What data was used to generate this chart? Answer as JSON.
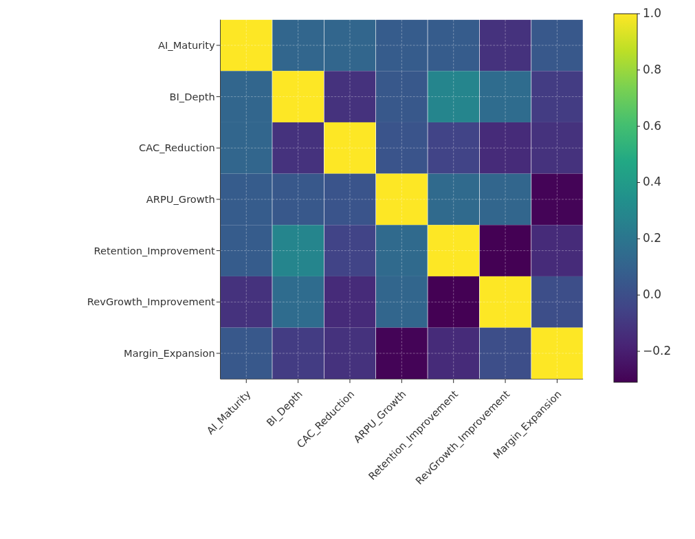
{
  "chart_data": {
    "type": "heatmap",
    "categories": [
      "AI_Maturity",
      "BI_Depth",
      "CAC_Reduction",
      "ARPU_Growth",
      "Retention_Improvement",
      "RevGrowth_Improvement",
      "Margin_Expansion"
    ],
    "y_categories": [
      "AI_Maturity",
      "BI_Depth",
      "CAC_Reduction",
      "ARPU_Growth",
      "Retention_Improvement",
      "RevGrowth_Improvement",
      "Margin_Expansion"
    ],
    "cells": [
      [
        1.0,
        0.12,
        0.12,
        0.07,
        0.07,
        -0.12,
        0.05
      ],
      [
        0.12,
        1.0,
        -0.12,
        0.05,
        0.28,
        0.15,
        -0.08
      ],
      [
        0.12,
        -0.12,
        1.0,
        0.03,
        -0.05,
        -0.15,
        -0.12
      ],
      [
        0.07,
        0.05,
        0.03,
        1.0,
        0.14,
        0.12,
        -0.3
      ],
      [
        0.07,
        0.28,
        -0.05,
        0.14,
        1.0,
        -0.31,
        -0.15
      ],
      [
        -0.12,
        0.15,
        -0.15,
        0.12,
        -0.31,
        1.0,
        0.0
      ],
      [
        0.05,
        -0.08,
        -0.12,
        -0.3,
        -0.15,
        0.0,
        1.0
      ]
    ],
    "clim": [
      -0.31,
      1.0
    ],
    "cticks": [
      -0.2,
      {
        "value": 0.0,
        "label": "0.0"
      },
      0.2,
      0.4,
      0.6,
      0.8,
      {
        "value": 1.0,
        "label": "1.0"
      }
    ],
    "grid": true
  }
}
